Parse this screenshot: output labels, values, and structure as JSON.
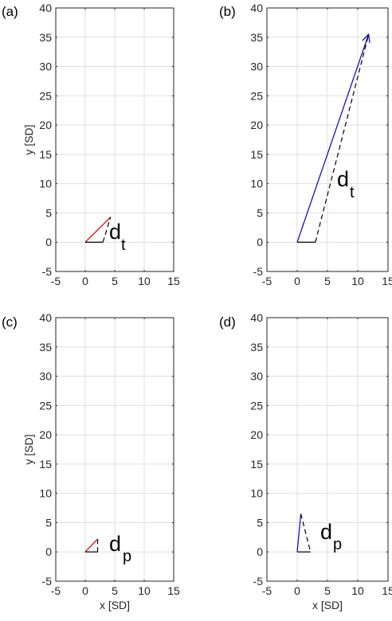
{
  "chart_data": [
    {
      "type": "line",
      "panel_label": "(a)",
      "xlabel": "",
      "ylabel": "y [SD]",
      "xlim": [
        -5,
        15
      ],
      "ylim": [
        -5,
        40
      ],
      "xticks": [
        -5,
        0,
        5,
        10,
        15
      ],
      "yticks": [
        -5,
        0,
        5,
        10,
        15,
        20,
        25,
        30,
        35,
        40
      ],
      "grid": true,
      "annotation": {
        "base": "d",
        "sub": "t"
      },
      "series": [
        {
          "color": "#e00000",
          "style": "solid",
          "x": [
            0,
            4.3
          ],
          "y": [
            0,
            4.3
          ]
        },
        {
          "color": "#000000",
          "style": "solid",
          "x": [
            0,
            3.0
          ],
          "y": [
            0,
            0
          ]
        },
        {
          "color": "#000000",
          "style": "dashed",
          "x": [
            3.0,
            4.3
          ],
          "y": [
            0,
            4.3
          ]
        }
      ]
    },
    {
      "type": "line",
      "panel_label": "(b)",
      "xlabel": "",
      "ylabel": "",
      "xlim": [
        -5,
        15
      ],
      "ylim": [
        -5,
        40
      ],
      "xticks": [
        -5,
        0,
        5,
        10,
        15
      ],
      "yticks": [
        -5,
        0,
        5,
        10,
        15,
        20,
        25,
        30,
        35,
        40
      ],
      "grid": true,
      "annotation": {
        "base": "d",
        "sub": "t"
      },
      "series": [
        {
          "color": "#0000c8",
          "style": "solid",
          "arrow": true,
          "x": [
            0,
            11.8
          ],
          "y": [
            0,
            35.5
          ]
        },
        {
          "color": "#000000",
          "style": "solid",
          "x": [
            0,
            3.0
          ],
          "y": [
            0,
            0
          ]
        },
        {
          "color": "#000000",
          "style": "dashed",
          "x": [
            3.0,
            11.8
          ],
          "y": [
            0,
            35.5
          ]
        }
      ]
    },
    {
      "type": "line",
      "panel_label": "(c)",
      "xlabel": "x [SD]",
      "ylabel": "y [SD]",
      "xlim": [
        -5,
        15
      ],
      "ylim": [
        -5,
        40
      ],
      "xticks": [
        -5,
        0,
        5,
        10,
        15
      ],
      "yticks": [
        -5,
        0,
        5,
        10,
        15,
        20,
        25,
        30,
        35,
        40
      ],
      "grid": true,
      "annotation": {
        "base": "d",
        "sub": "p"
      },
      "series": [
        {
          "color": "#e00000",
          "style": "solid",
          "x": [
            0,
            2.1
          ],
          "y": [
            0,
            2.2
          ]
        },
        {
          "color": "#000000",
          "style": "solid",
          "x": [
            0,
            2.1
          ],
          "y": [
            0,
            0
          ]
        },
        {
          "color": "#000000",
          "style": "dashed",
          "x": [
            2.1,
            2.1
          ],
          "y": [
            0,
            2.2
          ]
        }
      ]
    },
    {
      "type": "line",
      "panel_label": "(d)",
      "xlabel": "x [SD]",
      "ylabel": "",
      "xlim": [
        -5,
        15
      ],
      "ylim": [
        -5,
        40
      ],
      "xticks": [
        -5,
        0,
        5,
        10,
        15
      ],
      "yticks": [
        -5,
        0,
        5,
        10,
        15,
        20,
        25,
        30,
        35,
        40
      ],
      "grid": true,
      "annotation": {
        "base": "d",
        "sub": "p"
      },
      "series": [
        {
          "color": "#0000c8",
          "style": "solid",
          "x": [
            0,
            0.6
          ],
          "y": [
            0,
            6.5
          ]
        },
        {
          "color": "#000000",
          "style": "solid",
          "x": [
            0,
            2.2
          ],
          "y": [
            0,
            0
          ]
        },
        {
          "color": "#000000",
          "style": "dashed",
          "x": [
            0.6,
            2.2
          ],
          "y": [
            6.5,
            0
          ]
        }
      ]
    }
  ]
}
